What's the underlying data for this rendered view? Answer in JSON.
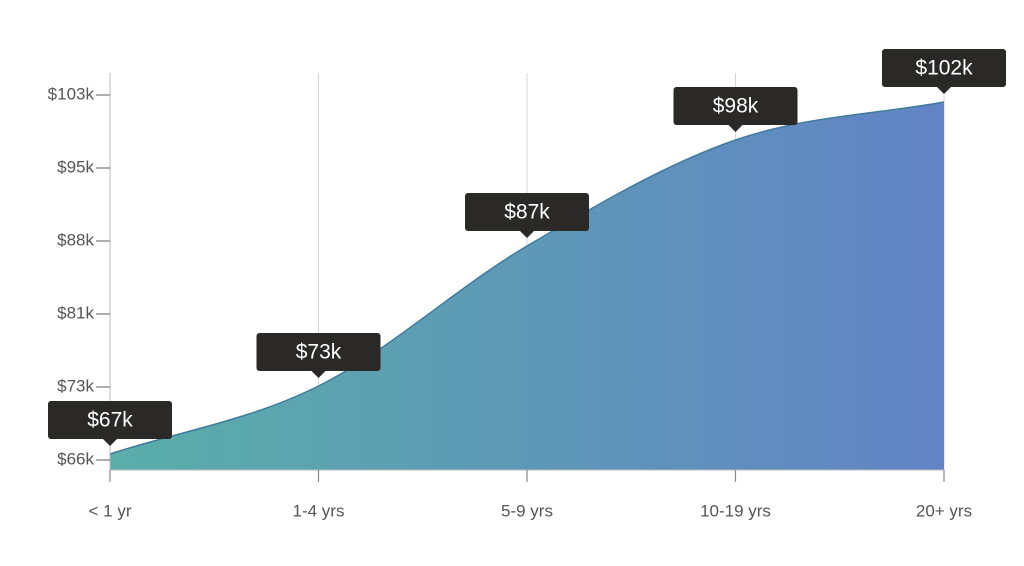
{
  "chart_data": {
    "type": "area",
    "categories": [
      "< 1 yr",
      "1-4 yrs",
      "5-9 yrs",
      "10-19 yrs",
      "20+ yrs"
    ],
    "values": [
      66600,
      73400,
      87400,
      98000,
      101800
    ],
    "value_labels": [
      "$67k",
      "$73k",
      "$87k",
      "$98k",
      "$102k"
    ],
    "ylim": [
      65000,
      104700
    ],
    "yticks": [
      {
        "value": 66000,
        "label": "$66k"
      },
      {
        "value": 73300,
        "label": "$73k"
      },
      {
        "value": 80600,
        "label": "$81k"
      },
      {
        "value": 87900,
        "label": "$88k"
      },
      {
        "value": 95200,
        "label": "$95k"
      },
      {
        "value": 102500,
        "label": "$103k"
      }
    ],
    "colors": [
      "#5aaea9",
      "#6283c5"
    ],
    "line_color": "#3f7b9d"
  }
}
